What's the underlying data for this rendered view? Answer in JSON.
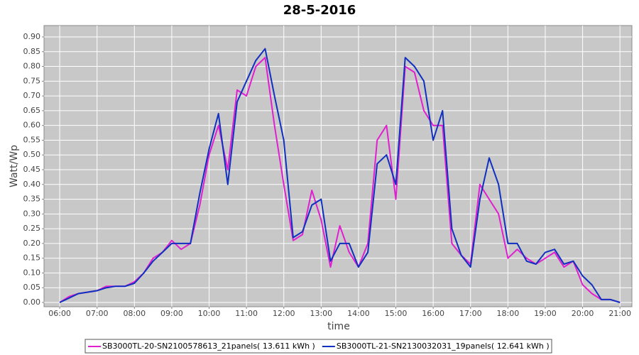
{
  "chart_data": {
    "type": "line",
    "title": "28-5-2016",
    "x_label": "time",
    "y_label": "Watt/Wp",
    "x": [
      6,
      6.25,
      6.5,
      6.75,
      7,
      7.25,
      7.5,
      7.75,
      8,
      8.25,
      8.5,
      8.75,
      9,
      9.25,
      9.5,
      9.75,
      10,
      10.25,
      10.5,
      10.75,
      11,
      11.25,
      11.5,
      11.75,
      12,
      12.25,
      12.5,
      12.75,
      13,
      13.25,
      13.5,
      13.75,
      14,
      14.25,
      14.5,
      14.75,
      15,
      15.25,
      15.5,
      15.75,
      16,
      16.25,
      16.5,
      16.75,
      17,
      17.25,
      17.5,
      17.75,
      18,
      18.25,
      18.5,
      18.75,
      19,
      19.25,
      19.5,
      19.75,
      20,
      20.25,
      20.5,
      20.75,
      21
    ],
    "series": [
      {
        "name": "SB3000TL-20-SN2100578613_21panels( 13.611 kWh )",
        "color": "#e020d0",
        "values": [
          0,
          0.02,
          0.03,
          0.035,
          0.04,
          0.055,
          0.055,
          0.055,
          0.07,
          0.1,
          0.15,
          0.17,
          0.21,
          0.18,
          0.2,
          0.33,
          0.5,
          0.6,
          0.45,
          0.72,
          0.7,
          0.8,
          0.83,
          0.6,
          0.4,
          0.21,
          0.23,
          0.38,
          0.28,
          0.12,
          0.26,
          0.17,
          0.12,
          0.2,
          0.55,
          0.6,
          0.35,
          0.8,
          0.78,
          0.65,
          0.6,
          0.6,
          0.2,
          0.16,
          0.13,
          0.4,
          0.35,
          0.3,
          0.15,
          0.18,
          0.15,
          0.13,
          0.15,
          0.17,
          0.12,
          0.14,
          0.06,
          0.03,
          0.01,
          0.01,
          0
        ]
      },
      {
        "name": "SB3000TL-21-SN2130032031_19panels( 12.641 kWh )",
        "color": "#1030c0",
        "values": [
          0,
          0.015,
          0.03,
          0.035,
          0.04,
          0.05,
          0.055,
          0.055,
          0.065,
          0.1,
          0.14,
          0.17,
          0.2,
          0.2,
          0.2,
          0.37,
          0.52,
          0.64,
          0.4,
          0.68,
          0.75,
          0.82,
          0.86,
          0.7,
          0.55,
          0.22,
          0.24,
          0.33,
          0.35,
          0.14,
          0.2,
          0.2,
          0.12,
          0.17,
          0.47,
          0.5,
          0.4,
          0.83,
          0.8,
          0.75,
          0.55,
          0.65,
          0.25,
          0.16,
          0.12,
          0.35,
          0.49,
          0.4,
          0.2,
          0.2,
          0.14,
          0.13,
          0.17,
          0.18,
          0.13,
          0.14,
          0.09,
          0.06,
          0.01,
          0.01,
          0
        ]
      }
    ],
    "xlim": [
      5.58,
      21.32
    ],
    "xticks": [
      {
        "value": 6,
        "label": "06:00"
      },
      {
        "value": 7,
        "label": "07:00"
      },
      {
        "value": 8,
        "label": "08:00"
      },
      {
        "value": 9,
        "label": "09:00"
      },
      {
        "value": 10,
        "label": "10:00"
      },
      {
        "value": 11,
        "label": "11:00"
      },
      {
        "value": 12,
        "label": "12:00"
      },
      {
        "value": 13,
        "label": "13:00"
      },
      {
        "value": 14,
        "label": "14:00"
      },
      {
        "value": 15,
        "label": "15:00"
      },
      {
        "value": 16,
        "label": "16:00"
      },
      {
        "value": 17,
        "label": "17:00"
      },
      {
        "value": 18,
        "label": "18:00"
      },
      {
        "value": 19,
        "label": "19:00"
      },
      {
        "value": 20,
        "label": "20:00"
      },
      {
        "value": 21,
        "label": "21:00"
      }
    ],
    "ylim": [
      -0.0144,
      0.9385
    ],
    "yticks": [
      {
        "value": 0,
        "label": "0.00"
      },
      {
        "value": 0.05,
        "label": "0.05"
      },
      {
        "value": 0.1,
        "label": "0.10"
      },
      {
        "value": 0.15,
        "label": "0.15"
      },
      {
        "value": 0.2,
        "label": "0.20"
      },
      {
        "value": 0.25,
        "label": "0.25"
      },
      {
        "value": 0.3,
        "label": "0.30"
      },
      {
        "value": 0.35,
        "label": "0.35"
      },
      {
        "value": 0.4,
        "label": "0.40"
      },
      {
        "value": 0.45,
        "label": "0.45"
      },
      {
        "value": 0.5,
        "label": "0.50"
      },
      {
        "value": 0.55,
        "label": "0.55"
      },
      {
        "value": 0.6,
        "label": "0.60"
      },
      {
        "value": 0.65,
        "label": "0.65"
      },
      {
        "value": 0.7,
        "label": "0.70"
      },
      {
        "value": 0.75,
        "label": "0.75"
      },
      {
        "value": 0.8,
        "label": "0.80"
      },
      {
        "value": 0.85,
        "label": "0.85"
      },
      {
        "value": 0.9,
        "label": "0.90"
      }
    ],
    "grid": true,
    "legend": "bottom"
  }
}
